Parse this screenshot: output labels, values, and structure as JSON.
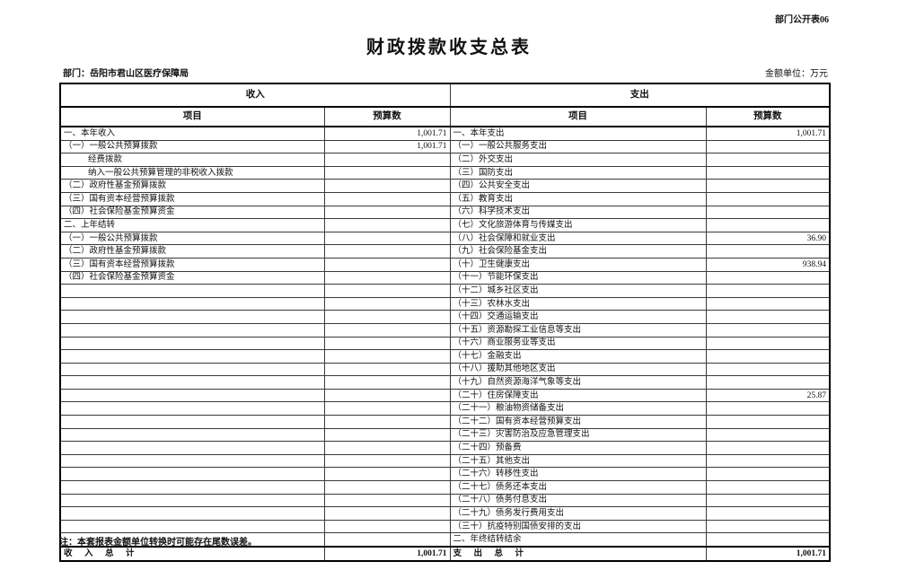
{
  "page": {
    "doc_label": "部门公开表06",
    "title": "财政拨款收支总表",
    "department": "部门：岳阳市君山区医疗保障局",
    "unit": "金额单位：万元",
    "note": "注：本套报表金额单位转换时可能存在尾数误差。"
  },
  "table": {
    "income_header": "收入",
    "expense_header": "支出",
    "item_header": "项目",
    "budget_header": "预算数",
    "rows": [
      {
        "income_item": "一、本年收入",
        "income_indent": 0,
        "income_value": "1,001.71",
        "expense_item": "一、本年支出",
        "expense_value": "1,001.71"
      },
      {
        "income_item": "（一）一般公共预算拨款",
        "income_indent": 0,
        "income_value": "1,001.71",
        "expense_item": "（一）一般公共服务支出",
        "expense_value": ""
      },
      {
        "income_item": "经费拨款",
        "income_indent": 1,
        "income_value": "",
        "expense_item": "（二）外交支出",
        "expense_value": ""
      },
      {
        "income_item": "纳入一般公共预算管理的非税收入拨款",
        "income_indent": 1,
        "income_value": "",
        "expense_item": "（三）国防支出",
        "expense_value": ""
      },
      {
        "income_item": "（二）政府性基金预算拨款",
        "income_indent": 0,
        "income_value": "",
        "expense_item": "（四）公共安全支出",
        "expense_value": ""
      },
      {
        "income_item": "（三）国有资本经营预算拨款",
        "income_indent": 0,
        "income_value": "",
        "expense_item": "（五）教育支出",
        "expense_value": ""
      },
      {
        "income_item": "（四）社会保险基金预算资金",
        "income_indent": 0,
        "income_value": "",
        "expense_item": "（六）科学技术支出",
        "expense_value": ""
      },
      {
        "income_item": "二、上年结转",
        "income_indent": 0,
        "income_value": "",
        "expense_item": "（七）文化旅游体育与传媒支出",
        "expense_value": ""
      },
      {
        "income_item": "（一）一般公共预算拨款",
        "income_indent": 0,
        "income_value": "",
        "expense_item": "（八）社会保障和就业支出",
        "expense_value": "36.90"
      },
      {
        "income_item": "（二）政府性基金预算拨款",
        "income_indent": 0,
        "income_value": "",
        "expense_item": "（九）社会保险基金支出",
        "expense_value": ""
      },
      {
        "income_item": "（三）国有资本经营预算拨款",
        "income_indent": 0,
        "income_value": "",
        "expense_item": "（十）卫生健康支出",
        "expense_value": "938.94"
      },
      {
        "income_item": "（四）社会保险基金预算资金",
        "income_indent": 0,
        "income_value": "",
        "expense_item": "（十一）节能环保支出",
        "expense_value": ""
      },
      {
        "income_item": "",
        "income_indent": 0,
        "income_value": "",
        "expense_item": "（十二）城乡社区支出",
        "expense_value": ""
      },
      {
        "income_item": "",
        "income_indent": 0,
        "income_value": "",
        "expense_item": "（十三）农林水支出",
        "expense_value": ""
      },
      {
        "income_item": "",
        "income_indent": 0,
        "income_value": "",
        "expense_item": "（十四）交通运输支出",
        "expense_value": ""
      },
      {
        "income_item": "",
        "income_indent": 0,
        "income_value": "",
        "expense_item": "（十五）资源勘探工业信息等支出",
        "expense_value": ""
      },
      {
        "income_item": "",
        "income_indent": 0,
        "income_value": "",
        "expense_item": "（十六）商业服务业等支出",
        "expense_value": ""
      },
      {
        "income_item": "",
        "income_indent": 0,
        "income_value": "",
        "expense_item": "（十七）金融支出",
        "expense_value": ""
      },
      {
        "income_item": "",
        "income_indent": 0,
        "income_value": "",
        "expense_item": "（十八）援助其他地区支出",
        "expense_value": ""
      },
      {
        "income_item": "",
        "income_indent": 0,
        "income_value": "",
        "expense_item": "（十九）自然资源海洋气象等支出",
        "expense_value": ""
      },
      {
        "income_item": "",
        "income_indent": 0,
        "income_value": "",
        "expense_item": "（二十）住房保障支出",
        "expense_value": "25.87"
      },
      {
        "income_item": "",
        "income_indent": 0,
        "income_value": "",
        "expense_item": "（二十一）粮油物资储备支出",
        "expense_value": ""
      },
      {
        "income_item": "",
        "income_indent": 0,
        "income_value": "",
        "expense_item": "（二十二）国有资本经营预算支出",
        "expense_value": ""
      },
      {
        "income_item": "",
        "income_indent": 0,
        "income_value": "",
        "expense_item": "（二十三）灾害防治及应急管理支出",
        "expense_value": ""
      },
      {
        "income_item": "",
        "income_indent": 0,
        "income_value": "",
        "expense_item": "（二十四）预备费",
        "expense_value": ""
      },
      {
        "income_item": "",
        "income_indent": 0,
        "income_value": "",
        "expense_item": "（二十五）其他支出",
        "expense_value": ""
      },
      {
        "income_item": "",
        "income_indent": 0,
        "income_value": "",
        "expense_item": "（二十六）转移性支出",
        "expense_value": ""
      },
      {
        "income_item": "",
        "income_indent": 0,
        "income_value": "",
        "expense_item": "（二十七）债务还本支出",
        "expense_value": ""
      },
      {
        "income_item": "",
        "income_indent": 0,
        "income_value": "",
        "expense_item": "（二十八）债务付息支出",
        "expense_value": ""
      },
      {
        "income_item": "",
        "income_indent": 0,
        "income_value": "",
        "expense_item": "（二十九）债务发行费用支出",
        "expense_value": ""
      },
      {
        "income_item": "",
        "income_indent": 0,
        "income_value": "",
        "expense_item": "（三十）抗疫特别国债安排的支出",
        "expense_value": ""
      },
      {
        "income_item": "",
        "income_indent": 0,
        "income_value": "",
        "expense_item": "二、年终结转结余",
        "expense_value": ""
      }
    ],
    "totals": {
      "income_label": "收　入　总　计",
      "income_value": "1,001.71",
      "expense_label": "支　出　总　计",
      "expense_value": "1,001.71"
    }
  }
}
